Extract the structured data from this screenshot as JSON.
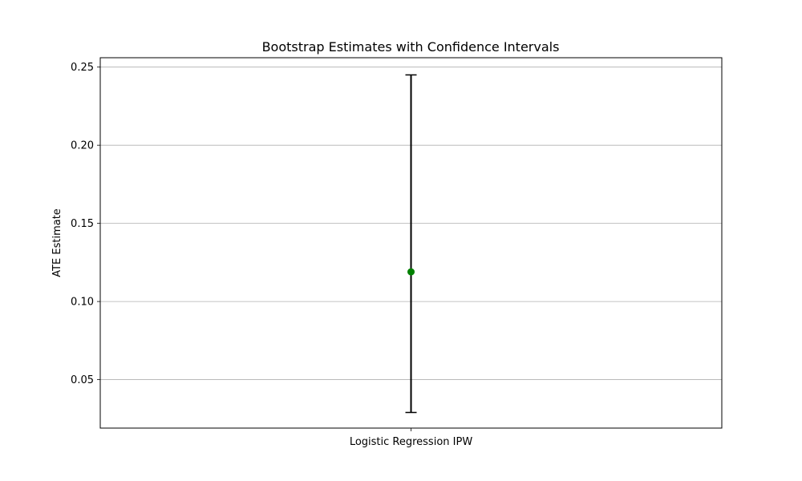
{
  "chart_data": {
    "type": "scatter",
    "title": "Bootstrap Estimates with Confidence Intervals",
    "xlabel": "",
    "ylabel": "ATE Estimate",
    "categories": [
      "Logistic Regression IPW"
    ],
    "series": [
      {
        "values": [
          0.119
        ],
        "ci_lower": [
          0.029
        ],
        "ci_upper": [
          0.245
        ],
        "color": "#008000",
        "errorbar_color": "#000000"
      }
    ],
    "ylim": [
      0.019,
      0.256
    ],
    "yticks": [
      0.05,
      0.1,
      0.15,
      0.2,
      0.25
    ],
    "ytick_labels": [
      "0.05",
      "0.10",
      "0.15",
      "0.20",
      "0.25"
    ],
    "grid": {
      "y": true,
      "x": false,
      "color": "#b0b0b0"
    }
  }
}
